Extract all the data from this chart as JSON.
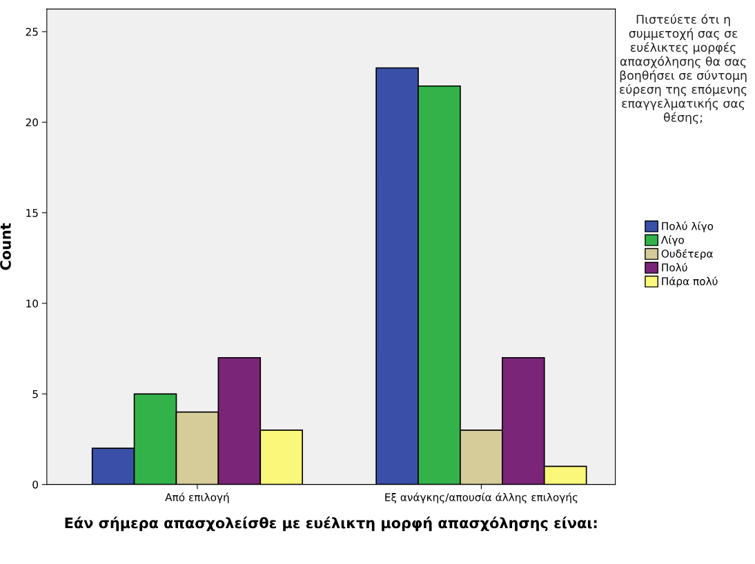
{
  "chart_data": {
    "type": "bar",
    "categories": [
      "Από επιλογή",
      "Εξ ανάγκης/απουσία άλλης επιλογής"
    ],
    "xlabel": "Εάν σήμερα απασχολείσθε με ευέλικτη μορφή απασχόλησης είναι:",
    "ylabel": "Count",
    "legend_title": "Πιστεύετε ότι η συμμετοχή σας σε ευέλικτες μορφές απασχόλησης θα σας βοηθήσει σε σύντομη εύρεση της επόμενης επαγγελματικής σας θέσης;",
    "legend": "right",
    "grid": false,
    "ylim": [
      0,
      26.25
    ],
    "yticks": [
      0,
      5,
      10,
      15,
      20,
      25
    ],
    "series": [
      {
        "name": "Πολύ λίγο",
        "color": "#3a4fa8",
        "values": [
          2,
          23
        ]
      },
      {
        "name": "Λίγο",
        "color": "#33b24a",
        "values": [
          5,
          22
        ]
      },
      {
        "name": "Ουδέτερα",
        "color": "#d6cc99",
        "values": [
          4,
          3
        ]
      },
      {
        "name": "Πολύ",
        "color": "#7b2579",
        "values": [
          7,
          7
        ]
      },
      {
        "name": "Πάρα πολύ",
        "color": "#fbf77a",
        "values": [
          3,
          1
        ]
      }
    ]
  }
}
